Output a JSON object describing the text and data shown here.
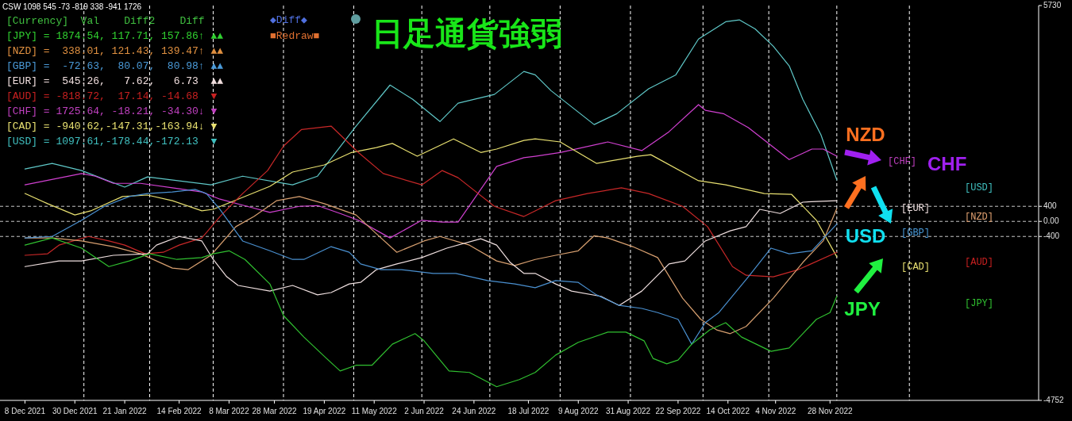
{
  "chart_data": {
    "type": "line",
    "title": "日足通貨強弱",
    "xlim": [
      "2021-11-27",
      "2023-02-28"
    ],
    "xticks": [
      {
        "value": "2021-12-08",
        "label": "8 Dec 2021"
      },
      {
        "value": "2021-12-30",
        "label": "30 Dec 2021"
      },
      {
        "value": "2022-01-21",
        "label": "21 Jan 2022"
      },
      {
        "value": "2022-02-14",
        "label": "14 Feb 2022"
      },
      {
        "value": "2022-03-08",
        "label": "8 Mar 2022"
      },
      {
        "value": "2022-03-28",
        "label": "28 Mar 2022"
      },
      {
        "value": "2022-04-19",
        "label": "19 Apr 2022"
      },
      {
        "value": "2022-05-11",
        "label": "11 May 2022"
      },
      {
        "value": "2022-06-02",
        "label": "2 Jun 2022"
      },
      {
        "value": "2022-06-24",
        "label": "24 Jun 2022"
      },
      {
        "value": "2022-07-18",
        "label": "18 Jul 2022"
      },
      {
        "value": "2022-08-09",
        "label": "9 Aug 2022"
      },
      {
        "value": "2022-08-31",
        "label": "31 Aug 2022"
      },
      {
        "value": "2022-09-22",
        "label": "22 Sep 2022"
      },
      {
        "value": "2022-10-14",
        "label": "14 Oct 2022"
      },
      {
        "value": "2022-11-04",
        "label": "4 Nov 2022"
      },
      {
        "value": "2022-11-28",
        "label": "28 Nov 2022"
      }
    ],
    "ylim": [
      -4752,
      5730
    ],
    "yticks": [
      5730,
      400,
      {
        "value": 0,
        "label": "0.00"
      },
      -400,
      -4752
    ],
    "ref_lines": [
      {
        "axis": "y",
        "value": 400,
        "line_style": "dashed",
        "color": "#c8c8c8"
      },
      {
        "axis": "y",
        "value": 0,
        "line_style": "dashed",
        "color": "#c8c8c8"
      },
      {
        "axis": "y",
        "value": -400,
        "line_style": "dashed",
        "color": "#c8c8c8"
      },
      {
        "axis": "x",
        "value": "2022-01-03",
        "line_style": "dashed",
        "color": "#ffffff"
      },
      {
        "axis": "x",
        "value": "2022-02-01",
        "line_style": "dashed",
        "color": "#ffffff"
      },
      {
        "axis": "x",
        "value": "2022-03-01",
        "line_style": "dashed",
        "color": "#ffffff"
      },
      {
        "axis": "x",
        "value": "2022-04-01",
        "line_style": "dashed",
        "color": "#ffffff"
      },
      {
        "axis": "x",
        "value": "2022-05-02",
        "line_style": "dashed",
        "color": "#ffffff"
      },
      {
        "axis": "x",
        "value": "2022-06-01",
        "line_style": "dashed",
        "color": "#ffffff"
      },
      {
        "axis": "x",
        "value": "2022-07-01",
        "line_style": "dashed",
        "color": "#ffffff"
      },
      {
        "axis": "x",
        "value": "2022-08-01",
        "line_style": "dashed",
        "color": "#ffffff"
      },
      {
        "axis": "x",
        "value": "2022-09-01",
        "line_style": "dashed",
        "color": "#ffffff"
      },
      {
        "axis": "x",
        "value": "2022-10-03",
        "line_style": "dashed",
        "color": "#ffffff"
      },
      {
        "axis": "x",
        "value": "2022-11-01",
        "line_style": "dashed",
        "color": "#ffffff"
      },
      {
        "axis": "x",
        "value": "2022-12-01",
        "line_style": "dashed",
        "color": "#ffffff"
      },
      {
        "axis": "x",
        "value": "2023-01-02",
        "line_style": "dashed",
        "color": "#ffffff"
      }
    ],
    "series": [
      {
        "color": "#5fc8c8",
        "x": [
          "2021-12-08",
          "2021-12-20",
          "2022-01-02",
          "2022-01-21",
          "2022-01-31",
          "2022-02-28",
          "2022-03-14",
          "2022-04-05",
          "2022-04-16",
          "2022-05-03",
          "2022-05-18",
          "2022-05-28",
          "2022-06-09",
          "2022-06-17",
          "2022-07-03",
          "2022-07-16",
          "2022-07-21",
          "2022-07-28",
          "2022-08-16",
          "2022-08-26",
          "2022-09-09",
          "2022-09-21",
          "2022-10-01",
          "2022-10-13",
          "2022-10-19",
          "2022-10-26",
          "2022-11-03",
          "2022-11-10",
          "2022-11-16",
          "2022-11-24",
          "2022-12-01"
        ],
        "values": [
          1390,
          1540,
          1350,
          910,
          1180,
          970,
          1200,
          970,
          1200,
          2530,
          3620,
          3240,
          2650,
          3140,
          3370,
          3980,
          3890,
          3470,
          2570,
          2860,
          3520,
          3890,
          4840,
          5300,
          5350,
          5110,
          4650,
          4130,
          3240,
          2300,
          1100
        ]
      },
      {
        "color": "#d040d0",
        "x": [
          "2021-12-08",
          "2022-01-02",
          "2022-01-08",
          "2022-01-16",
          "2022-01-28",
          "2022-02-11",
          "2022-02-24",
          "2022-03-04",
          "2022-03-16",
          "2022-03-26",
          "2022-04-08",
          "2022-04-16",
          "2022-04-26",
          "2022-05-04",
          "2022-05-18",
          "2022-06-01",
          "2022-06-10",
          "2022-06-17",
          "2022-07-04",
          "2022-07-16",
          "2022-07-21",
          "2022-08-01",
          "2022-08-22",
          "2022-09-06",
          "2022-09-18",
          "2022-10-01",
          "2022-10-04",
          "2022-10-12",
          "2022-10-23",
          "2022-11-10",
          "2022-11-20",
          "2022-11-25",
          "2022-12-01"
        ],
        "values": [
          970,
          1270,
          1200,
          1010,
          1010,
          890,
          780,
          590,
          400,
          240,
          400,
          420,
          210,
          30,
          -440,
          30,
          -20,
          -20,
          1460,
          1690,
          1730,
          1830,
          2110,
          1880,
          2380,
          3100,
          2950,
          2860,
          2490,
          1640,
          1920,
          1920,
          1730
        ]
      },
      {
        "color": "#e8e070",
        "x": [
          "2021-12-08",
          "2021-12-18",
          "2021-12-30",
          "2022-01-06",
          "2022-01-20",
          "2022-01-31",
          "2022-02-11",
          "2022-02-24",
          "2022-03-01",
          "2022-03-12",
          "2022-03-26",
          "2022-04-05",
          "2022-04-19",
          "2022-05-01",
          "2022-05-12",
          "2022-05-19",
          "2022-05-30",
          "2022-06-15",
          "2022-06-27",
          "2022-07-04",
          "2022-07-16",
          "2022-07-21",
          "2022-08-01",
          "2022-08-17",
          "2022-09-04",
          "2022-09-10",
          "2022-10-01",
          "2022-10-13",
          "2022-10-30",
          "2022-11-11",
          "2022-11-22",
          "2022-12-01"
        ],
        "values": [
          740,
          470,
          170,
          280,
          660,
          700,
          550,
          280,
          320,
          590,
          930,
          1310,
          1500,
          1830,
          1960,
          2070,
          1730,
          2190,
          1830,
          1920,
          2150,
          2190,
          2110,
          1540,
          1730,
          1770,
          1080,
          970,
          740,
          720,
          30,
          -940
        ]
      },
      {
        "color": "#c82828",
        "x": [
          "2021-12-08",
          "2021-12-18",
          "2021-12-23",
          "2022-01-05",
          "2022-01-14",
          "2022-01-21",
          "2022-01-30",
          "2022-02-07",
          "2022-02-14",
          "2022-02-24",
          "2022-03-04",
          "2022-03-14",
          "2022-03-25",
          "2022-04-01",
          "2022-04-09",
          "2022-04-22",
          "2022-04-26",
          "2022-05-04",
          "2022-05-15",
          "2022-06-01",
          "2022-06-10",
          "2022-06-17",
          "2022-07-03",
          "2022-07-16",
          "2022-07-21",
          "2022-07-30",
          "2022-08-13",
          "2022-08-28",
          "2022-09-09",
          "2022-09-24",
          "2022-10-05",
          "2022-10-16",
          "2022-10-22",
          "2022-11-03",
          "2022-11-14",
          "2022-12-01"
        ],
        "values": [
          -900,
          -860,
          -630,
          -400,
          -520,
          -630,
          -860,
          -820,
          -630,
          -440,
          130,
          740,
          1350,
          2000,
          2440,
          2530,
          2300,
          1830,
          1270,
          970,
          1350,
          1160,
          400,
          130,
          280,
          550,
          740,
          890,
          740,
          400,
          -140,
          -1200,
          -1430,
          -1470,
          -1280,
          -820
        ]
      },
      {
        "color": "#d8a070",
        "x": [
          "2021-12-08",
          "2021-12-20",
          "2022-01-02",
          "2022-01-16",
          "2022-01-28",
          "2022-02-11",
          "2022-02-18",
          "2022-02-28",
          "2022-03-11",
          "2022-03-19",
          "2022-03-29",
          "2022-04-08",
          "2022-04-19",
          "2022-05-03",
          "2022-05-12",
          "2022-05-21",
          "2022-06-02",
          "2022-06-09",
          "2022-06-22",
          "2022-07-04",
          "2022-07-12",
          "2022-07-21",
          "2022-07-30",
          "2022-08-09",
          "2022-08-16",
          "2022-08-22",
          "2022-09-02",
          "2022-09-13",
          "2022-09-24",
          "2022-10-02",
          "2022-10-09",
          "2022-10-15",
          "2022-10-22",
          "2022-11-03",
          "2022-11-16",
          "2022-11-25",
          "2022-12-01"
        ],
        "values": [
          -440,
          -440,
          -520,
          -670,
          -860,
          -1240,
          -1280,
          -900,
          -140,
          130,
          550,
          660,
          470,
          170,
          -330,
          -820,
          -520,
          -400,
          -630,
          -1050,
          -1170,
          -1010,
          -900,
          -780,
          -380,
          -440,
          -670,
          -960,
          -2040,
          -2600,
          -2880,
          -2980,
          -2790,
          -2040,
          -1090,
          -520,
          340
        ]
      },
      {
        "color": "#f0e0e0",
        "x": [
          "2021-12-08",
          "2021-12-23",
          "2022-01-02",
          "2022-01-16",
          "2022-01-31",
          "2022-02-04",
          "2022-02-14",
          "2022-02-24",
          "2022-03-01",
          "2022-03-07",
          "2022-03-12",
          "2022-03-26",
          "2022-04-05",
          "2022-04-16",
          "2022-04-22",
          "2022-04-30",
          "2022-05-05",
          "2022-05-12",
          "2022-05-21",
          "2022-06-01",
          "2022-06-12",
          "2022-06-27",
          "2022-07-04",
          "2022-07-10",
          "2022-07-16",
          "2022-07-21",
          "2022-07-30",
          "2022-08-06",
          "2022-08-19",
          "2022-08-27",
          "2022-09-06",
          "2022-09-18",
          "2022-09-25",
          "2022-10-04",
          "2022-10-15",
          "2022-10-22",
          "2022-10-28",
          "2022-11-06",
          "2022-11-16",
          "2022-11-22",
          "2022-12-01"
        ],
        "values": [
          -1200,
          -1050,
          -1050,
          -900,
          -860,
          -630,
          -400,
          -520,
          -1010,
          -1470,
          -1700,
          -1850,
          -1700,
          -1950,
          -1890,
          -1660,
          -1620,
          -1280,
          -1130,
          -960,
          -710,
          -460,
          -630,
          -1090,
          -1380,
          -1380,
          -1660,
          -1850,
          -1990,
          -2230,
          -1850,
          -1130,
          -1050,
          -520,
          -250,
          -140,
          320,
          210,
          510,
          530,
          550
        ]
      },
      {
        "color": "#4a90d0",
        "x": [
          "2021-12-08",
          "2021-12-20",
          "2022-01-02",
          "2022-01-12",
          "2022-01-23",
          "2022-01-31",
          "2022-02-11",
          "2022-02-21",
          "2022-02-26",
          "2022-03-04",
          "2022-03-14",
          "2022-03-26",
          "2022-04-05",
          "2022-04-10",
          "2022-04-22",
          "2022-04-30",
          "2022-05-05",
          "2022-05-14",
          "2022-05-23",
          "2022-06-06",
          "2022-06-16",
          "2022-06-30",
          "2022-07-12",
          "2022-07-21",
          "2022-07-30",
          "2022-08-09",
          "2022-08-17",
          "2022-08-27",
          "2022-09-06",
          "2022-09-13",
          "2022-09-22",
          "2022-09-28",
          "2022-10-04",
          "2022-10-10",
          "2022-10-23",
          "2022-11-02",
          "2022-11-10",
          "2022-11-20",
          "2022-11-27",
          "2022-12-01"
        ],
        "values": [
          -440,
          -400,
          30,
          400,
          660,
          740,
          780,
          850,
          740,
          320,
          -520,
          -780,
          -1010,
          -1010,
          -670,
          -820,
          -1130,
          -1280,
          -1280,
          -1380,
          -1380,
          -1570,
          -1660,
          -1760,
          -1570,
          -1620,
          -1950,
          -2230,
          -2310,
          -2420,
          -2600,
          -3260,
          -2690,
          -2420,
          -1470,
          -710,
          -860,
          -780,
          -330,
          -70
        ]
      },
      {
        "color": "#30c030",
        "x": [
          "2021-12-08",
          "2021-12-20",
          "2022-01-02",
          "2022-01-14",
          "2022-01-23",
          "2022-02-01",
          "2022-02-13",
          "2022-02-24",
          "2022-03-01",
          "2022-03-08",
          "2022-03-15",
          "2022-03-26",
          "2022-04-01",
          "2022-04-10",
          "2022-04-20",
          "2022-04-26",
          "2022-05-03",
          "2022-05-10",
          "2022-05-19",
          "2022-05-29",
          "2022-06-02",
          "2022-06-13",
          "2022-06-22",
          "2022-07-04",
          "2022-07-14",
          "2022-07-21",
          "2022-07-30",
          "2022-08-09",
          "2022-08-22",
          "2022-08-30",
          "2022-09-07",
          "2022-09-11",
          "2022-09-17",
          "2022-09-22",
          "2022-09-28",
          "2022-10-06",
          "2022-10-13",
          "2022-10-20",
          "2022-11-02",
          "2022-11-10",
          "2022-11-16",
          "2022-11-22",
          "2022-11-28",
          "2022-12-01"
        ],
        "values": [
          -630,
          -440,
          -710,
          -1200,
          -1050,
          -860,
          -1010,
          -960,
          -860,
          -780,
          -1010,
          -1660,
          -2500,
          -3070,
          -3640,
          -3970,
          -3820,
          -3820,
          -3260,
          -2980,
          -3170,
          -3970,
          -4010,
          -4390,
          -4200,
          -4010,
          -3550,
          -3210,
          -2940,
          -2940,
          -3170,
          -3640,
          -3780,
          -3680,
          -3260,
          -2880,
          -2690,
          -3070,
          -3450,
          -3360,
          -2980,
          -2600,
          -2420,
          -1990
        ]
      }
    ],
    "annotations": [
      "CSW 1098 545 -73 -819 338 -941 1726",
      "[Currency]  Val    Diff2    Diff",
      "[JPY] = 1874.54, 117.71, 157.86↑ ▲▲",
      "[NZD] =  338.01, 121.43, 139.47↑ ▲▲",
      "[GBP] =  -72.63,  80.07,  80.98↑ ▲▲",
      "[EUR] =  545.26,   7.62,   6.73  ▲▲",
      "[AUD] = -818.72,  17.14, -14.68  ▼",
      "[CHF] = 1725.64, -18.21, -34.30↓ ▼",
      "[CAD] = -940.62,-147.31,-163.94↓ ▼",
      "[USD] = 1097.61,-178.44,-172.13  ▼",
      "◆Diff◆",
      "■Redraw■",
      "NZD",
      "CHF",
      "USD",
      "JPY",
      "[CHF]",
      "[USD]",
      "[EUR]",
      "[NZD]",
      "[GBP]",
      "[CAD]",
      "[AUD]",
      "[JPY]"
    ]
  }
}
